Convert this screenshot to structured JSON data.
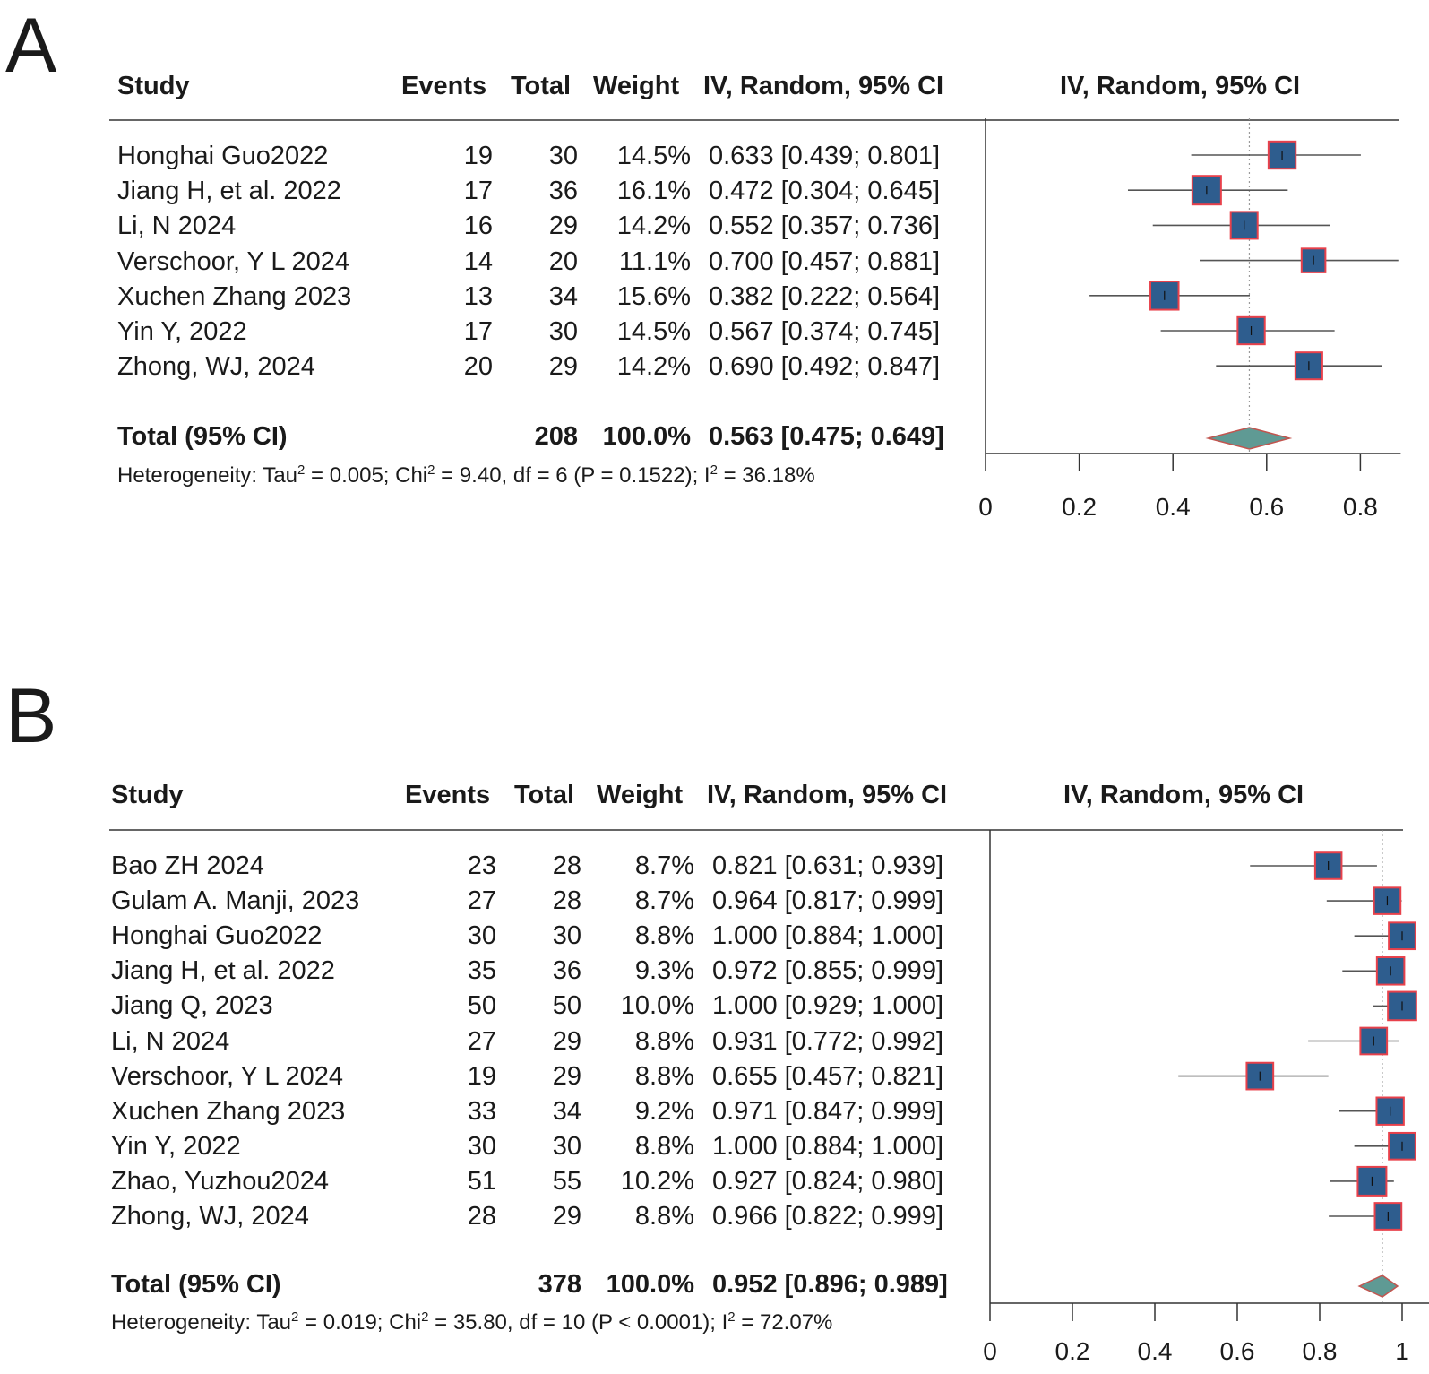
{
  "colors": {
    "box_fill": "#2e5d8e",
    "box_stroke": "#e8414b",
    "diamond_fill": "#5f9a94",
    "diamond_stroke": "#c2554f",
    "line": "#555555",
    "refline": "#9a9a9a"
  },
  "chart_data": [
    {
      "panel_label": "A",
      "type": "forest",
      "columns": {
        "study": "Study",
        "events": "Events",
        "total": "Total",
        "weight": "Weight",
        "ci_text": "IV, Random, 95% CI",
        "plot": "IV, Random, 95% CI"
      },
      "studies": [
        {
          "name": "Honghai Guo2022",
          "events": "19",
          "total": "30",
          "weight": "14.5%",
          "ci_text": "0.633 [0.439; 0.801]",
          "est": 0.633,
          "lo": 0.439,
          "hi": 0.801,
          "w": 14.5
        },
        {
          "name": "Jiang H, et al. 2022",
          "events": "17",
          "total": "36",
          "weight": "16.1%",
          "ci_text": "0.472 [0.304; 0.645]",
          "est": 0.472,
          "lo": 0.304,
          "hi": 0.645,
          "w": 16.1
        },
        {
          "name": "Li, N 2024",
          "events": "16",
          "total": "29",
          "weight": "14.2%",
          "ci_text": "0.552 [0.357; 0.736]",
          "est": 0.552,
          "lo": 0.357,
          "hi": 0.736,
          "w": 14.2
        },
        {
          "name": "Verschoor, Y L  2024",
          "events": "14",
          "total": "20",
          "weight": "11.1%",
          "ci_text": "0.700 [0.457; 0.881]",
          "est": 0.7,
          "lo": 0.457,
          "hi": 0.881,
          "w": 11.1
        },
        {
          "name": "Xuchen Zhang 2023",
          "events": "13",
          "total": "34",
          "weight": "15.6%",
          "ci_text": "0.382 [0.222; 0.564]",
          "est": 0.382,
          "lo": 0.222,
          "hi": 0.564,
          "w": 15.6
        },
        {
          "name": "Yin Y, 2022",
          "events": "17",
          "total": "30",
          "weight": "14.5%",
          "ci_text": "0.567 [0.374; 0.745]",
          "est": 0.567,
          "lo": 0.374,
          "hi": 0.745,
          "w": 14.5
        },
        {
          "name": "Zhong, WJ, 2024",
          "events": "20",
          "total": "29",
          "weight": "14.2%",
          "ci_text": "0.690 [0.492; 0.847]",
          "est": 0.69,
          "lo": 0.492,
          "hi": 0.847,
          "w": 14.2
        }
      ],
      "total": {
        "label": "Total (95% CI)",
        "total": "208",
        "weight": "100.0%",
        "ci_text": "0.563 [0.475; 0.649]",
        "est": 0.563,
        "lo": 0.475,
        "hi": 0.649
      },
      "heterogeneity": {
        "prefix": "Heterogeneity: Tau",
        "sup1": "2",
        "mid1": " = 0.005; Chi",
        "sup2": "2",
        "mid2": " = 9.40, df = 6 (P = 0.1522); I",
        "sup3": "2",
        "suffix": " = 36.18%"
      },
      "xaxis": {
        "ticks": [
          0,
          0.2,
          0.4,
          0.6,
          0.8
        ],
        "tick_labels": [
          "0",
          "0.2",
          "0.4",
          "0.6",
          "0.8"
        ],
        "xlim": [
          0,
          0.9
        ]
      }
    },
    {
      "panel_label": "B",
      "type": "forest",
      "columns": {
        "study": "Study",
        "events": "Events",
        "total": "Total",
        "weight": "Weight",
        "ci_text": "IV, Random, 95% CI",
        "plot": "IV, Random, 95% CI"
      },
      "studies": [
        {
          "name": "Bao ZH 2024",
          "events": "23",
          "total": "28",
          "weight": "8.7%",
          "ci_text": "0.821 [0.631; 0.939]",
          "est": 0.821,
          "lo": 0.631,
          "hi": 0.939,
          "w": 8.7
        },
        {
          "name": "Gulam A. Manji, 2023",
          "events": "27",
          "total": "28",
          "weight": "8.7%",
          "ci_text": "0.964 [0.817; 0.999]",
          "est": 0.964,
          "lo": 0.817,
          "hi": 0.999,
          "w": 8.7
        },
        {
          "name": "Honghai Guo2022",
          "events": "30",
          "total": "30",
          "weight": "8.8%",
          "ci_text": "1.000 [0.884; 1.000]",
          "est": 1.0,
          "lo": 0.884,
          "hi": 1.0,
          "w": 8.8
        },
        {
          "name": "Jiang H, et al. 2022",
          "events": "35",
          "total": "36",
          "weight": "9.3%",
          "ci_text": "0.972 [0.855; 0.999]",
          "est": 0.972,
          "lo": 0.855,
          "hi": 0.999,
          "w": 9.3
        },
        {
          "name": "Jiang Q, 2023",
          "events": "50",
          "total": "50",
          "weight": "10.0%",
          "ci_text": "1.000 [0.929; 1.000]",
          "est": 1.0,
          "lo": 0.929,
          "hi": 1.0,
          "w": 10.0
        },
        {
          "name": "Li, N 2024",
          "events": "27",
          "total": "29",
          "weight": "8.8%",
          "ci_text": "0.931 [0.772; 0.992]",
          "est": 0.931,
          "lo": 0.772,
          "hi": 0.992,
          "w": 8.8
        },
        {
          "name": "Verschoor, Y L  2024",
          "events": "19",
          "total": "29",
          "weight": "8.8%",
          "ci_text": "0.655 [0.457; 0.821]",
          "est": 0.655,
          "lo": 0.457,
          "hi": 0.821,
          "w": 8.8
        },
        {
          "name": "Xuchen Zhang 2023",
          "events": "33",
          "total": "34",
          "weight": "9.2%",
          "ci_text": "0.971 [0.847; 0.999]",
          "est": 0.971,
          "lo": 0.847,
          "hi": 0.999,
          "w": 9.2
        },
        {
          "name": "Yin Y, 2022",
          "events": "30",
          "total": "30",
          "weight": "8.8%",
          "ci_text": "1.000 [0.884; 1.000]",
          "est": 1.0,
          "lo": 0.884,
          "hi": 1.0,
          "w": 8.8
        },
        {
          "name": "Zhao, Yuzhou2024",
          "events": "51",
          "total": "55",
          "weight": "10.2%",
          "ci_text": "0.927 [0.824; 0.980]",
          "est": 0.927,
          "lo": 0.824,
          "hi": 0.98,
          "w": 10.2
        },
        {
          "name": "Zhong, WJ, 2024",
          "events": "28",
          "total": "29",
          "weight": "8.8%",
          "ci_text": "0.966 [0.822; 0.999]",
          "est": 0.966,
          "lo": 0.822,
          "hi": 0.999,
          "w": 8.8
        }
      ],
      "total": {
        "label": "Total (95% CI)",
        "total": "378",
        "weight": "100.0%",
        "ci_text": "0.952 [0.896; 0.989]",
        "est": 0.952,
        "lo": 0.896,
        "hi": 0.989
      },
      "heterogeneity": {
        "prefix": "Heterogeneity: Tau",
        "sup1": "2",
        "mid1": " = 0.019; Chi",
        "sup2": "2",
        "mid2": " = 35.80, df = 10 (P < 0.0001); I",
        "sup3": "2",
        "suffix": " = 72.07%"
      },
      "xaxis": {
        "ticks": [
          0,
          0.2,
          0.4,
          0.6,
          0.8,
          1
        ],
        "tick_labels": [
          "0",
          "0.2",
          "0.4",
          "0.6",
          "0.8",
          "1"
        ],
        "xlim": [
          0,
          1
        ]
      }
    }
  ]
}
